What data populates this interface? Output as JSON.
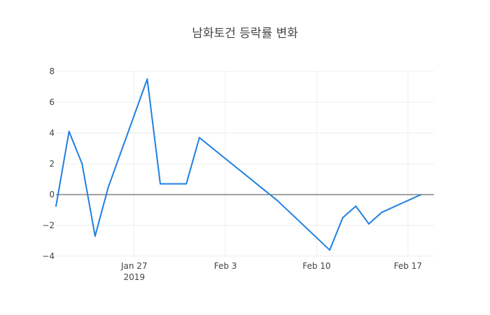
{
  "chart_data": {
    "type": "line",
    "title": "남화토건 등락률 변화",
    "xlabel": "",
    "ylabel": "",
    "x_is_date": true,
    "xlim": [
      "2019-01-21",
      "2019-02-19"
    ],
    "ylim": [
      -4,
      8
    ],
    "grid": true,
    "zero_line": true,
    "legend": "none",
    "color": "#1f7fe0",
    "y_ticks": [
      8,
      6,
      4,
      2,
      0,
      -2,
      -4
    ],
    "y_tick_labels": [
      "8",
      "6",
      "4",
      "2",
      "0",
      "−2",
      "−4"
    ],
    "x_ticks": [
      {
        "date": "2019-01-27",
        "label": "Jan 27",
        "sublabel": "2019"
      },
      {
        "date": "2019-02-03",
        "label": "Feb 3",
        "sublabel": ""
      },
      {
        "date": "2019-02-10",
        "label": "Feb 10",
        "sublabel": ""
      },
      {
        "date": "2019-02-17",
        "label": "Feb 17",
        "sublabel": ""
      }
    ],
    "series": [
      {
        "x": [
          "2019-01-21",
          "2019-01-22",
          "2019-01-23",
          "2019-01-24",
          "2019-01-25",
          "2019-01-28",
          "2019-01-29",
          "2019-01-31",
          "2019-02-01",
          "2019-02-07",
          "2019-02-11",
          "2019-02-12",
          "2019-02-13",
          "2019-02-14",
          "2019-02-15",
          "2019-02-18"
        ],
        "y": [
          -0.75,
          4.1,
          2.0,
          -2.7,
          0.45,
          7.5,
          0.7,
          0.7,
          3.7,
          -0.4,
          -3.6,
          -1.5,
          -0.75,
          -1.9,
          -1.15,
          0.0
        ]
      }
    ]
  }
}
